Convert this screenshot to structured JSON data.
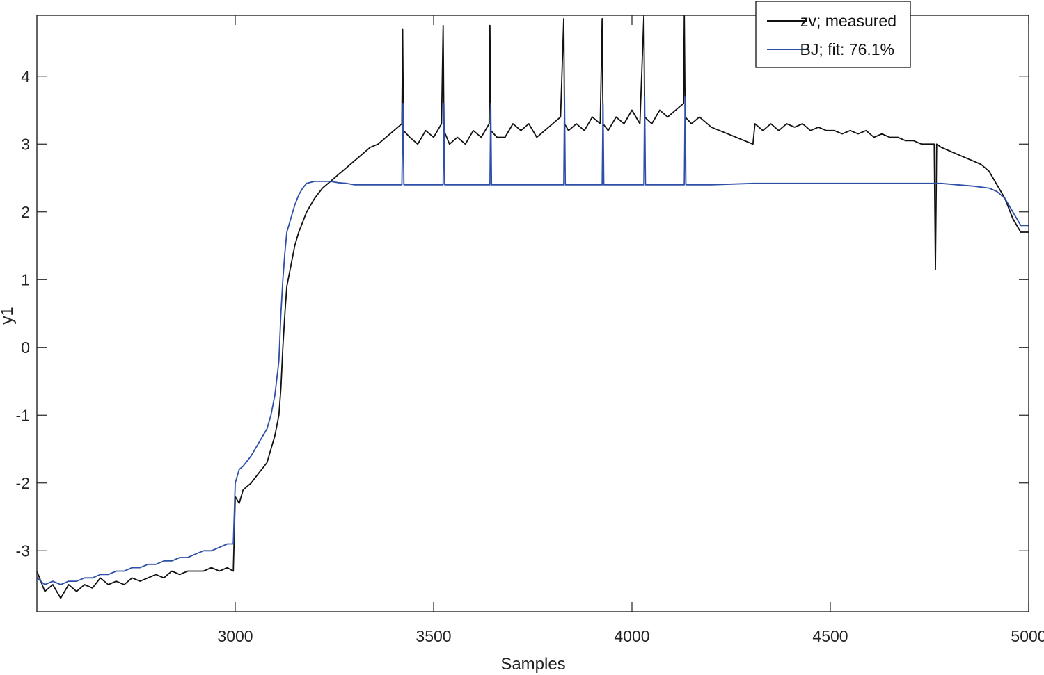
{
  "chart_data": {
    "type": "line",
    "title": "",
    "xlabel": "Samples",
    "ylabel": "y1",
    "xlim": [
      2500,
      5000
    ],
    "ylim": [
      -3.9,
      4.9
    ],
    "xticks": [
      3000,
      3500,
      4000,
      4500,
      5000
    ],
    "xtick_labels": [
      "3000",
      "3500",
      "4000",
      "4500",
      "5000"
    ],
    "yticks": [
      -3,
      -2,
      -1,
      0,
      1,
      2,
      3,
      4
    ],
    "ytick_labels": [
      "-3",
      "-2",
      "-1",
      "0",
      "1",
      "2",
      "3",
      "4"
    ],
    "grid": false,
    "legend_position": "top-right",
    "series": [
      {
        "name": "zv; measured",
        "color": "#111111",
        "points": [
          [
            2500,
            -3.3
          ],
          [
            2520,
            -3.6
          ],
          [
            2540,
            -3.5
          ],
          [
            2560,
            -3.7
          ],
          [
            2580,
            -3.5
          ],
          [
            2600,
            -3.6
          ],
          [
            2620,
            -3.5
          ],
          [
            2640,
            -3.55
          ],
          [
            2660,
            -3.4
          ],
          [
            2680,
            -3.5
          ],
          [
            2700,
            -3.45
          ],
          [
            2720,
            -3.5
          ],
          [
            2740,
            -3.4
          ],
          [
            2760,
            -3.45
          ],
          [
            2780,
            -3.4
          ],
          [
            2800,
            -3.35
          ],
          [
            2820,
            -3.4
          ],
          [
            2840,
            -3.3
          ],
          [
            2860,
            -3.35
          ],
          [
            2880,
            -3.3
          ],
          [
            2900,
            -3.3
          ],
          [
            2920,
            -3.3
          ],
          [
            2940,
            -3.25
          ],
          [
            2960,
            -3.3
          ],
          [
            2980,
            -3.25
          ],
          [
            2995,
            -3.3
          ],
          [
            3000,
            -2.2
          ],
          [
            3010,
            -2.3
          ],
          [
            3020,
            -2.1
          ],
          [
            3040,
            -2.0
          ],
          [
            3060,
            -1.85
          ],
          [
            3080,
            -1.7
          ],
          [
            3090,
            -1.5
          ],
          [
            3100,
            -1.3
          ],
          [
            3110,
            -1.0
          ],
          [
            3115,
            -0.6
          ],
          [
            3120,
            0.0
          ],
          [
            3125,
            0.5
          ],
          [
            3130,
            0.9
          ],
          [
            3140,
            1.2
          ],
          [
            3150,
            1.5
          ],
          [
            3160,
            1.7
          ],
          [
            3170,
            1.85
          ],
          [
            3180,
            2.0
          ],
          [
            3190,
            2.1
          ],
          [
            3200,
            2.2
          ],
          [
            3220,
            2.35
          ],
          [
            3240,
            2.45
          ],
          [
            3260,
            2.55
          ],
          [
            3280,
            2.65
          ],
          [
            3300,
            2.75
          ],
          [
            3320,
            2.85
          ],
          [
            3340,
            2.95
          ],
          [
            3360,
            3.0
          ],
          [
            3380,
            3.1
          ],
          [
            3400,
            3.2
          ],
          [
            3420,
            3.3
          ],
          [
            3422,
            4.7
          ],
          [
            3424,
            3.2
          ],
          [
            3440,
            3.1
          ],
          [
            3460,
            3.0
          ],
          [
            3480,
            3.2
          ],
          [
            3500,
            3.1
          ],
          [
            3520,
            3.3
          ],
          [
            3524,
            4.75
          ],
          [
            3526,
            3.2
          ],
          [
            3540,
            3.0
          ],
          [
            3560,
            3.1
          ],
          [
            3580,
            3.0
          ],
          [
            3600,
            3.2
          ],
          [
            3620,
            3.1
          ],
          [
            3640,
            3.3
          ],
          [
            3642,
            4.75
          ],
          [
            3644,
            3.2
          ],
          [
            3660,
            3.1
          ],
          [
            3680,
            3.1
          ],
          [
            3700,
            3.3
          ],
          [
            3720,
            3.2
          ],
          [
            3740,
            3.3
          ],
          [
            3760,
            3.1
          ],
          [
            3780,
            3.2
          ],
          [
            3800,
            3.3
          ],
          [
            3820,
            3.4
          ],
          [
            3828,
            4.85
          ],
          [
            3830,
            3.3
          ],
          [
            3840,
            3.2
          ],
          [
            3860,
            3.3
          ],
          [
            3880,
            3.2
          ],
          [
            3900,
            3.4
          ],
          [
            3920,
            3.3
          ],
          [
            3925,
            4.85
          ],
          [
            3927,
            3.3
          ],
          [
            3940,
            3.2
          ],
          [
            3960,
            3.4
          ],
          [
            3980,
            3.3
          ],
          [
            4000,
            3.5
          ],
          [
            4020,
            3.3
          ],
          [
            4030,
            4.9
          ],
          [
            4032,
            3.4
          ],
          [
            4050,
            3.3
          ],
          [
            4070,
            3.5
          ],
          [
            4090,
            3.4
          ],
          [
            4110,
            3.5
          ],
          [
            4130,
            3.6
          ],
          [
            4132,
            4.9
          ],
          [
            4134,
            3.4
          ],
          [
            4150,
            3.3
          ],
          [
            4170,
            3.4
          ],
          [
            4190,
            3.3
          ],
          [
            4200,
            3.25
          ],
          [
            4305,
            3.0
          ],
          [
            4310,
            3.3
          ],
          [
            4330,
            3.2
          ],
          [
            4350,
            3.3
          ],
          [
            4370,
            3.2
          ],
          [
            4390,
            3.3
          ],
          [
            4410,
            3.25
          ],
          [
            4430,
            3.3
          ],
          [
            4450,
            3.2
          ],
          [
            4470,
            3.25
          ],
          [
            4490,
            3.2
          ],
          [
            4510,
            3.2
          ],
          [
            4530,
            3.15
          ],
          [
            4550,
            3.2
          ],
          [
            4570,
            3.15
          ],
          [
            4590,
            3.2
          ],
          [
            4610,
            3.1
          ],
          [
            4630,
            3.15
          ],
          [
            4650,
            3.1
          ],
          [
            4670,
            3.1
          ],
          [
            4690,
            3.05
          ],
          [
            4710,
            3.05
          ],
          [
            4730,
            3.0
          ],
          [
            4750,
            3.0
          ],
          [
            4762,
            3.0
          ],
          [
            4765,
            1.15
          ],
          [
            4768,
            3.0
          ],
          [
            4780,
            2.95
          ],
          [
            4800,
            2.9
          ],
          [
            4820,
            2.85
          ],
          [
            4840,
            2.8
          ],
          [
            4860,
            2.75
          ],
          [
            4880,
            2.7
          ],
          [
            4900,
            2.6
          ],
          [
            4920,
            2.4
          ],
          [
            4940,
            2.2
          ],
          [
            4960,
            1.9
          ],
          [
            4980,
            1.7
          ],
          [
            5000,
            1.7
          ]
        ]
      },
      {
        "name": "BJ; fit: 76.1%",
        "color": "#2E4FA8",
        "points": [
          [
            2500,
            -3.4
          ],
          [
            2520,
            -3.5
          ],
          [
            2540,
            -3.45
          ],
          [
            2560,
            -3.5
          ],
          [
            2580,
            -3.45
          ],
          [
            2600,
            -3.45
          ],
          [
            2620,
            -3.4
          ],
          [
            2640,
            -3.4
          ],
          [
            2660,
            -3.35
          ],
          [
            2680,
            -3.35
          ],
          [
            2700,
            -3.3
          ],
          [
            2720,
            -3.3
          ],
          [
            2740,
            -3.25
          ],
          [
            2760,
            -3.25
          ],
          [
            2780,
            -3.2
          ],
          [
            2800,
            -3.2
          ],
          [
            2820,
            -3.15
          ],
          [
            2840,
            -3.15
          ],
          [
            2860,
            -3.1
          ],
          [
            2880,
            -3.1
          ],
          [
            2900,
            -3.05
          ],
          [
            2920,
            -3.0
          ],
          [
            2940,
            -3.0
          ],
          [
            2960,
            -2.95
          ],
          [
            2980,
            -2.9
          ],
          [
            2995,
            -2.9
          ],
          [
            3000,
            -2.0
          ],
          [
            3010,
            -1.8
          ],
          [
            3020,
            -1.75
          ],
          [
            3040,
            -1.6
          ],
          [
            3060,
            -1.4
          ],
          [
            3080,
            -1.2
          ],
          [
            3090,
            -1.0
          ],
          [
            3100,
            -0.7
          ],
          [
            3110,
            -0.2
          ],
          [
            3115,
            0.5
          ],
          [
            3120,
            1.0
          ],
          [
            3125,
            1.4
          ],
          [
            3130,
            1.7
          ],
          [
            3140,
            1.9
          ],
          [
            3150,
            2.1
          ],
          [
            3160,
            2.25
          ],
          [
            3170,
            2.35
          ],
          [
            3180,
            2.42
          ],
          [
            3200,
            2.45
          ],
          [
            3220,
            2.45
          ],
          [
            3240,
            2.45
          ],
          [
            3260,
            2.43
          ],
          [
            3280,
            2.42
          ],
          [
            3300,
            2.4
          ],
          [
            3340,
            2.4
          ],
          [
            3380,
            2.4
          ],
          [
            3420,
            2.4
          ],
          [
            3423,
            3.6
          ],
          [
            3425,
            2.4
          ],
          [
            3480,
            2.4
          ],
          [
            3524,
            2.4
          ],
          [
            3526,
            3.6
          ],
          [
            3528,
            2.4
          ],
          [
            3580,
            2.4
          ],
          [
            3642,
            2.4
          ],
          [
            3644,
            3.6
          ],
          [
            3646,
            2.4
          ],
          [
            3700,
            2.4
          ],
          [
            3760,
            2.4
          ],
          [
            3828,
            2.4
          ],
          [
            3830,
            3.7
          ],
          [
            3832,
            2.4
          ],
          [
            3880,
            2.4
          ],
          [
            3925,
            2.4
          ],
          [
            3927,
            3.6
          ],
          [
            3929,
            2.4
          ],
          [
            3980,
            2.4
          ],
          [
            4030,
            2.4
          ],
          [
            4032,
            3.7
          ],
          [
            4034,
            2.4
          ],
          [
            4080,
            2.4
          ],
          [
            4132,
            2.4
          ],
          [
            4134,
            3.7
          ],
          [
            4136,
            2.4
          ],
          [
            4170,
            2.4
          ],
          [
            4200,
            2.4
          ],
          [
            4305,
            2.42
          ],
          [
            4340,
            2.42
          ],
          [
            4380,
            2.42
          ],
          [
            4420,
            2.42
          ],
          [
            4460,
            2.42
          ],
          [
            4500,
            2.42
          ],
          [
            4540,
            2.42
          ],
          [
            4580,
            2.42
          ],
          [
            4620,
            2.42
          ],
          [
            4660,
            2.42
          ],
          [
            4700,
            2.42
          ],
          [
            4740,
            2.42
          ],
          [
            4780,
            2.42
          ],
          [
            4820,
            2.4
          ],
          [
            4860,
            2.38
          ],
          [
            4900,
            2.35
          ],
          [
            4920,
            2.3
          ],
          [
            4940,
            2.2
          ],
          [
            4960,
            2.0
          ],
          [
            4980,
            1.8
          ],
          [
            5000,
            1.8
          ]
        ]
      }
    ]
  }
}
